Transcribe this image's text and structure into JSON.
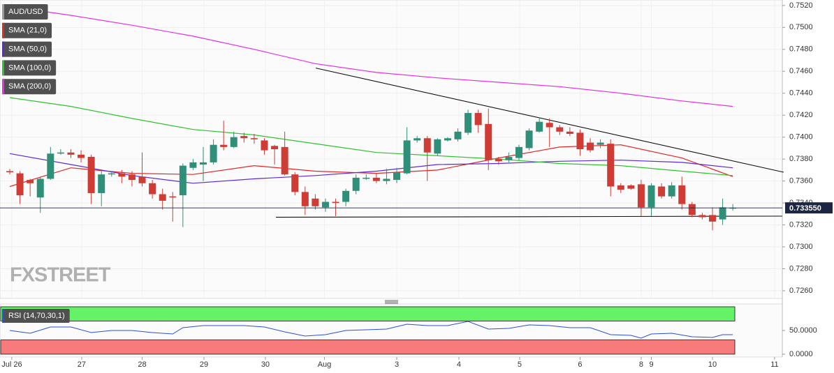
{
  "chart_data": [
    {
      "type": "candlestick",
      "name": "AUD/USD",
      "up_color": "#2f8f78",
      "down_color": "#cf3b35",
      "grid": true,
      "legend": "top-left",
      "watermark": "FXSTREET",
      "ohlc": [
        [
          0.7369,
          0.7371,
          0.7366,
          0.7368
        ],
        [
          0.7367,
          0.7369,
          0.7339,
          0.7347
        ],
        [
          0.7361,
          0.7362,
          0.7346,
          0.7358
        ],
        [
          0.7345,
          0.7364,
          0.7331,
          0.7362
        ],
        [
          0.7362,
          0.7391,
          0.7361,
          0.7385
        ],
        [
          0.7385,
          0.7389,
          0.7384,
          0.7386
        ],
        [
          0.7386,
          0.7389,
          0.7381,
          0.7384
        ],
        [
          0.7384,
          0.7388,
          0.7377,
          0.7381
        ],
        [
          0.7382,
          0.7384,
          0.7339,
          0.7349
        ],
        [
          0.7349,
          0.7369,
          0.7337,
          0.7366
        ],
        [
          0.7366,
          0.7369,
          0.7364,
          0.7367
        ],
        [
          0.7367,
          0.737,
          0.7358,
          0.7364
        ],
        [
          0.7366,
          0.7369,
          0.7355,
          0.7361
        ],
        [
          0.7364,
          0.7386,
          0.7355,
          0.7358
        ],
        [
          0.7358,
          0.7361,
          0.7344,
          0.7348
        ],
        [
          0.7348,
          0.7353,
          0.7334,
          0.7342
        ],
        [
          0.7346,
          0.735,
          0.7323,
          0.7345
        ],
        [
          0.7347,
          0.7376,
          0.7318,
          0.7374
        ],
        [
          0.7372,
          0.738,
          0.737,
          0.7377
        ],
        [
          0.7375,
          0.7391,
          0.736,
          0.7377
        ],
        [
          0.7377,
          0.7398,
          0.7375,
          0.7393
        ],
        [
          0.7393,
          0.7415,
          0.7388,
          0.7391
        ],
        [
          0.7391,
          0.7405,
          0.739,
          0.74
        ],
        [
          0.7401,
          0.7404,
          0.7395,
          0.7399
        ],
        [
          0.7399,
          0.7403,
          0.7394,
          0.7398
        ],
        [
          0.7397,
          0.7399,
          0.7384,
          0.7388
        ],
        [
          0.7392,
          0.7393,
          0.7375,
          0.7389
        ],
        [
          0.7391,
          0.7405,
          0.7365,
          0.7366
        ],
        [
          0.7366,
          0.7368,
          0.7347,
          0.735
        ],
        [
          0.735,
          0.7355,
          0.7329,
          0.7337
        ],
        [
          0.7344,
          0.7348,
          0.7334,
          0.7337
        ],
        [
          0.7336,
          0.7344,
          0.7332,
          0.7341
        ],
        [
          0.7341,
          0.7344,
          0.7328,
          0.734
        ],
        [
          0.7341,
          0.7353,
          0.7337,
          0.7351
        ],
        [
          0.7351,
          0.7366,
          0.7348,
          0.7363
        ],
        [
          0.7362,
          0.7366,
          0.7361,
          0.7363
        ],
        [
          0.7363,
          0.7367,
          0.7358,
          0.736
        ],
        [
          0.736,
          0.7371,
          0.7357,
          0.7362
        ],
        [
          0.7361,
          0.7372,
          0.7358,
          0.7368
        ],
        [
          0.7367,
          0.7409,
          0.7366,
          0.7397
        ],
        [
          0.7397,
          0.7401,
          0.7395,
          0.7399
        ],
        [
          0.7399,
          0.7401,
          0.736,
          0.7386
        ],
        [
          0.7385,
          0.7399,
          0.7383,
          0.7398
        ],
        [
          0.7397,
          0.74,
          0.7396,
          0.7399
        ],
        [
          0.7398,
          0.7408,
          0.7396,
          0.7405
        ],
        [
          0.7404,
          0.7425,
          0.7402,
          0.7422
        ],
        [
          0.7422,
          0.7425,
          0.7404,
          0.7411
        ],
        [
          0.7412,
          0.7426,
          0.737,
          0.7379
        ],
        [
          0.738,
          0.7382,
          0.7375,
          0.7378
        ],
        [
          0.7379,
          0.7386,
          0.7377,
          0.7382
        ],
        [
          0.7381,
          0.7393,
          0.7379,
          0.7391
        ],
        [
          0.739,
          0.7408,
          0.7388,
          0.7406
        ],
        [
          0.7405,
          0.7417,
          0.7404,
          0.7414
        ],
        [
          0.7413,
          0.7417,
          0.7391,
          0.7409
        ],
        [
          0.7409,
          0.7411,
          0.7402,
          0.7405
        ],
        [
          0.7405,
          0.7409,
          0.7401,
          0.7403
        ],
        [
          0.7404,
          0.7407,
          0.7383,
          0.7389
        ],
        [
          0.7395,
          0.7399,
          0.7386,
          0.7388
        ],
        [
          0.7393,
          0.7398,
          0.739,
          0.7395
        ],
        [
          0.7394,
          0.7398,
          0.7346,
          0.7355
        ],
        [
          0.7356,
          0.7358,
          0.7349,
          0.7352
        ],
        [
          0.7356,
          0.7357,
          0.7352,
          0.7353
        ],
        [
          0.7357,
          0.7361,
          0.7328,
          0.7336
        ],
        [
          0.7336,
          0.7358,
          0.7328,
          0.7356
        ],
        [
          0.7355,
          0.7358,
          0.7344,
          0.7346
        ],
        [
          0.7346,
          0.7359,
          0.7344,
          0.7356
        ],
        [
          0.7356,
          0.7364,
          0.7334,
          0.7339
        ],
        [
          0.7339,
          0.7341,
          0.7327,
          0.7329
        ],
        [
          0.7329,
          0.7331,
          0.7325,
          0.7327
        ],
        [
          0.7329,
          0.7336,
          0.7315,
          0.7323
        ],
        [
          0.7325,
          0.7344,
          0.732,
          0.7336
        ],
        [
          0.7335,
          0.7339,
          0.7333,
          0.73355
        ]
      ],
      "series": [
        {
          "name": "SMA (21,0)",
          "color": "#e32626",
          "x": [
            0,
            6,
            12,
            18,
            24,
            30,
            36,
            42,
            48,
            54,
            60,
            66,
            71
          ],
          "values": [
            0.7355,
            0.7372,
            0.7367,
            0.7366,
            0.7374,
            0.7369,
            0.7367,
            0.737,
            0.7381,
            0.7391,
            0.7393,
            0.7381,
            0.7364
          ]
        },
        {
          "name": "SMA (50,0)",
          "color": "#5b2bd6",
          "x": [
            0,
            6,
            12,
            18,
            24,
            30,
            36,
            42,
            48,
            54,
            60,
            66,
            71
          ],
          "values": [
            0.7385,
            0.7375,
            0.7365,
            0.7358,
            0.7362,
            0.7365,
            0.7369,
            0.7375,
            0.7376,
            0.7378,
            0.7379,
            0.7377,
            0.7372
          ]
        },
        {
          "name": "SMA (100,0)",
          "color": "#2ec42e",
          "x": [
            0,
            6,
            12,
            18,
            24,
            30,
            36,
            42,
            48,
            54,
            60,
            66,
            71
          ],
          "values": [
            0.7436,
            0.7428,
            0.7417,
            0.7407,
            0.7402,
            0.7394,
            0.7386,
            0.7383,
            0.738,
            0.7376,
            0.7374,
            0.7369,
            0.7365
          ]
        },
        {
          "name": "SMA (200,0)",
          "color": "#e62ee6",
          "x": [
            0,
            6,
            12,
            18,
            24,
            30,
            36,
            42,
            48,
            54,
            60,
            66,
            71
          ],
          "values": [
            0.7519,
            0.7511,
            0.7502,
            0.7492,
            0.748,
            0.7467,
            0.7459,
            0.7454,
            0.745,
            0.7446,
            0.744,
            0.7433,
            0.7428
          ]
        }
      ],
      "trendlines": [
        {
          "color": "#111111",
          "x": [
            30.04,
            75.99
          ],
          "y": [
            0.7463,
            0.7368
          ]
        },
        {
          "color": "#111111",
          "x": [
            26.13,
            75.86
          ],
          "y": [
            0.7327,
            0.7328
          ]
        }
      ],
      "last_price": {
        "value": 0.73355,
        "label": "0.733550"
      },
      "xlim": [
        -0.96,
        75.86
      ],
      "xticks": [
        {
          "value": 0.2,
          "label": "Jul 26"
        },
        {
          "value": 7.06,
          "label": "27"
        },
        {
          "value": 13.0,
          "label": "28"
        },
        {
          "value": 19.07,
          "label": "29"
        },
        {
          "value": 25.1,
          "label": "30"
        },
        {
          "value": 30.9,
          "label": "Aug"
        },
        {
          "value": 38.0,
          "label": "3"
        },
        {
          "value": 44.1,
          "label": "4"
        },
        {
          "value": 50.07,
          "label": "5"
        },
        {
          "value": 56.0,
          "label": "6"
        },
        {
          "value": 62.0,
          "label": "8"
        },
        {
          "value": 63.0,
          "label": "9"
        },
        {
          "value": 69.0,
          "label": "10"
        },
        {
          "value": 75.1,
          "label": "11"
        }
      ],
      "ylim": [
        0.7253,
        0.7525
      ],
      "yticks": [
        {
          "value": 0.726,
          "label": "0.7260"
        },
        {
          "value": 0.728,
          "label": "0.7280"
        },
        {
          "value": 0.73,
          "label": "0.7300"
        },
        {
          "value": 0.732,
          "label": "0.7320"
        },
        {
          "value": 0.734,
          "label": "0.7340"
        },
        {
          "value": 0.736,
          "label": "0.7360"
        },
        {
          "value": 0.738,
          "label": "0.7380"
        },
        {
          "value": 0.74,
          "label": "0.7400"
        },
        {
          "value": 0.742,
          "label": "0.7420"
        },
        {
          "value": 0.744,
          "label": "0.7440"
        },
        {
          "value": 0.746,
          "label": "0.7460"
        },
        {
          "value": 0.748,
          "label": "0.7480"
        },
        {
          "value": 0.75,
          "label": "0.7500"
        },
        {
          "value": 0.752,
          "label": "0.7520"
        }
      ]
    },
    {
      "type": "line",
      "name": "RSI (14,70,30,1)",
      "color": "#2b4fd6",
      "x": [
        0,
        2,
        4,
        6,
        8,
        10,
        12,
        14,
        16,
        17,
        19,
        21,
        23,
        25,
        27,
        29,
        31,
        33,
        35,
        37,
        39,
        41,
        43,
        45,
        47,
        49,
        51,
        53,
        55,
        57,
        59,
        61,
        62,
        63,
        65,
        67,
        69,
        70,
        71
      ],
      "values": [
        50.0,
        44.1,
        57.4,
        57.4,
        45.6,
        50.0,
        50.0,
        45.6,
        42.6,
        55.9,
        60.3,
        60.3,
        60.3,
        57.4,
        47.1,
        38.2,
        41.2,
        50.0,
        51.5,
        52.9,
        63.2,
        60.3,
        60.3,
        69.1,
        52.9,
        54.4,
        61.8,
        60.3,
        55.9,
        55.9,
        41.2,
        39.7,
        33.8,
        42.6,
        44.1,
        36.8,
        35.3,
        41.2,
        41.2
      ],
      "bands": [
        {
          "range": [
            70,
            100
          ],
          "color": "#66f266"
        },
        {
          "range": [
            0,
            30
          ],
          "color": "#f77b7b"
        }
      ],
      "xlim": [
        -0.96,
        75.86
      ],
      "ylim": [
        -5.9,
        105.9
      ],
      "yticks": [
        {
          "value": 50,
          "label": "50.0000"
        },
        {
          "value": 0,
          "label": "0.0000"
        }
      ]
    }
  ]
}
